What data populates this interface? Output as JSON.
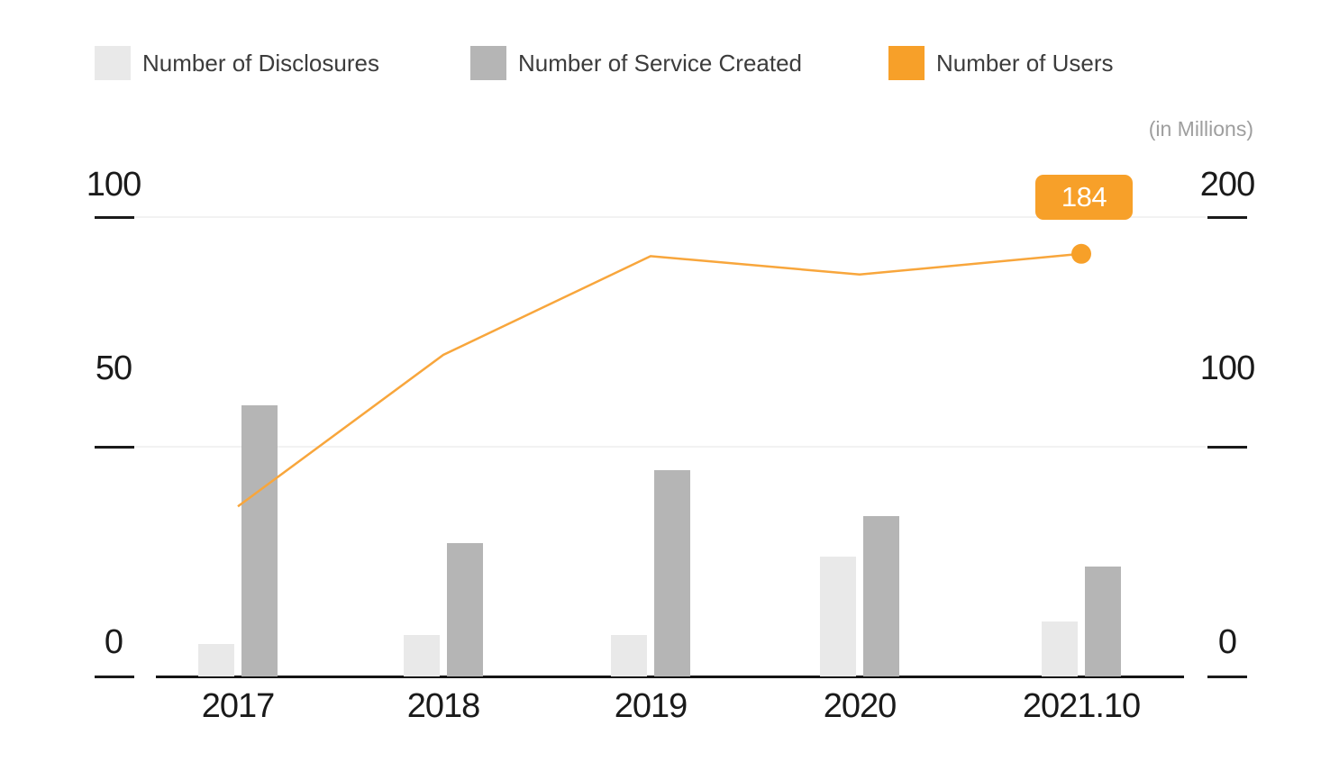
{
  "legend": {
    "items": [
      {
        "label": "Number of Disclosures",
        "icon": "light-gray-swatch",
        "color": "#E9E9E9"
      },
      {
        "label": "Number of Service Created",
        "icon": "gray-swatch",
        "color": "#B5B5B5"
      },
      {
        "label": "Number of Users",
        "icon": "orange-swatch",
        "color": "#F7A029"
      }
    ]
  },
  "unit_note": "(in Millions)",
  "axes": {
    "left": {
      "tick_labels": [
        "100",
        "50",
        "0"
      ],
      "range": [
        0,
        100
      ]
    },
    "right": {
      "tick_labels": [
        "200",
        "100",
        "0"
      ],
      "range": [
        0,
        200
      ]
    }
  },
  "annotation": {
    "label": "184",
    "series": "Number of Users",
    "category": "2021.10",
    "color": "#F7A029"
  },
  "colors": {
    "disclosures_bar": "#E9E9E9",
    "services_bar": "#B5B5B5",
    "users_orange": "#F7A029",
    "users_line": "#F8A63C",
    "gridline": "#F2F2F2",
    "axis": "#1A1A1A",
    "legend_text": "#3C3C3C",
    "muted_text": "#9E9E9E"
  },
  "chart_data": {
    "type": "bar",
    "subtype": "grouped-bars-with-line-overlay",
    "categories": [
      "2017",
      "2018",
      "2019",
      "2020",
      "2021.10"
    ],
    "series": [
      {
        "name": "Number of Disclosures",
        "kind": "bar",
        "axis": "left",
        "color": "#E9E9E9",
        "values": [
          7,
          9,
          9,
          26,
          12
        ]
      },
      {
        "name": "Number of Service Created",
        "kind": "bar",
        "axis": "left",
        "color": "#B5B5B5",
        "values": [
          59,
          29,
          45,
          35,
          24
        ]
      },
      {
        "name": "Number of Users",
        "kind": "line",
        "axis": "right",
        "color": "#F7A029",
        "values": [
          74,
          140,
          183,
          175,
          184
        ]
      }
    ],
    "title": "",
    "xlabel": "",
    "ylabel_right_note": "(in Millions)",
    "left_ylim": [
      0,
      100
    ],
    "right_ylim": [
      0,
      200
    ],
    "grid": "horizontal",
    "legend_position": "top",
    "data_label": {
      "series": "Number of Users",
      "category": "2021.10",
      "text": "184"
    }
  }
}
